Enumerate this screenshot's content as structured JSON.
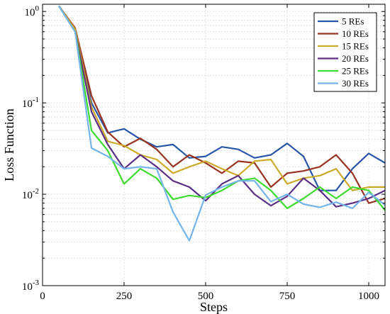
{
  "chart_data": {
    "type": "line",
    "xlabel": "Steps",
    "ylabel": "Loss Function",
    "xlim": [
      0,
      1050
    ],
    "ylim": [
      0.001,
      1.2
    ],
    "y_scale": "log",
    "grid": true,
    "legend_position": "top-right",
    "x_ticks": [
      {
        "value": 0,
        "label": "0"
      },
      {
        "value": 250,
        "label": "250"
      },
      {
        "value": 500,
        "label": "500"
      },
      {
        "value": 750,
        "label": "750"
      },
      {
        "value": 1000,
        "label": "1000"
      }
    ],
    "y_ticks": [
      {
        "value": 0.001,
        "base": "10",
        "exp": "-3"
      },
      {
        "value": 0.01,
        "base": "10",
        "exp": "-2"
      },
      {
        "value": 0.1,
        "base": "10",
        "exp": "-1"
      },
      {
        "value": 1,
        "base": "10",
        "exp": "0"
      }
    ],
    "x": [
      50,
      100,
      150,
      200,
      250,
      300,
      350,
      400,
      450,
      500,
      550,
      600,
      650,
      700,
      750,
      800,
      850,
      900,
      950,
      1000,
      1050
    ],
    "series": [
      {
        "name": "5 REs",
        "color": "#2855a8",
        "values": [
          1.15,
          0.62,
          0.1,
          0.047,
          0.052,
          0.04,
          0.033,
          0.035,
          0.025,
          0.026,
          0.033,
          0.031,
          0.025,
          0.027,
          0.036,
          0.026,
          0.011,
          0.011,
          0.019,
          0.028,
          0.022
        ]
      },
      {
        "name": "10 REs",
        "color": "#993322",
        "values": [
          1.15,
          0.66,
          0.12,
          0.048,
          0.033,
          0.041,
          0.031,
          0.02,
          0.027,
          0.022,
          0.017,
          0.023,
          0.022,
          0.012,
          0.017,
          0.018,
          0.02,
          0.027,
          0.017,
          0.008,
          0.009
        ]
      },
      {
        "name": "15 REs",
        "color": "#ccaa2a",
        "values": [
          1.15,
          0.64,
          0.09,
          0.038,
          0.034,
          0.027,
          0.024,
          0.017,
          0.02,
          0.023,
          0.019,
          0.016,
          0.023,
          0.024,
          0.013,
          0.015,
          0.016,
          0.019,
          0.011,
          0.012,
          0.012
        ]
      },
      {
        "name": "20 REs",
        "color": "#5b2f84",
        "values": [
          1.15,
          0.6,
          0.08,
          0.035,
          0.019,
          0.027,
          0.02,
          0.014,
          0.012,
          0.0085,
          0.013,
          0.016,
          0.01,
          0.0075,
          0.0095,
          0.015,
          0.011,
          0.0073,
          0.008,
          0.009,
          0.011
        ]
      },
      {
        "name": "25 REs",
        "color": "#3ddc2e",
        "values": [
          1.15,
          0.6,
          0.05,
          0.03,
          0.013,
          0.019,
          0.015,
          0.0088,
          0.0097,
          0.0092,
          0.011,
          0.014,
          0.015,
          0.011,
          0.007,
          0.009,
          0.012,
          0.009,
          0.012,
          0.011,
          0.0067
        ]
      },
      {
        "name": "30 REs",
        "color": "#74b4e8",
        "values": [
          1.15,
          0.6,
          0.032,
          0.026,
          0.019,
          0.02,
          0.019,
          0.0064,
          0.0031,
          0.0098,
          0.012,
          0.014,
          0.014,
          0.0083,
          0.01,
          0.0078,
          0.0072,
          0.0082,
          0.007,
          0.0105,
          0.0076
        ]
      }
    ]
  }
}
